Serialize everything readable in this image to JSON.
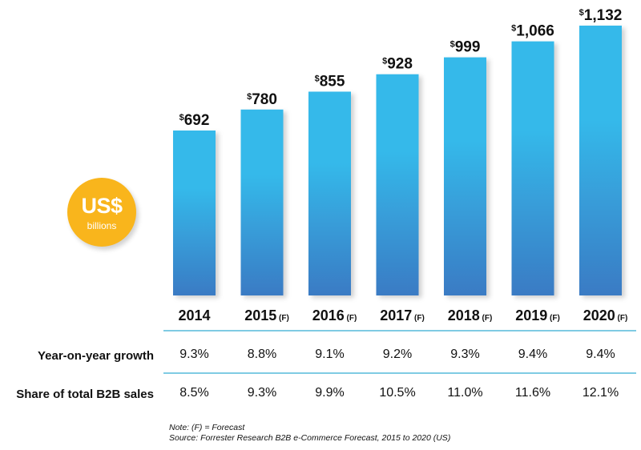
{
  "chart_data": {
    "type": "bar",
    "title": "",
    "xlabel": "",
    "ylabel": "US$ billions",
    "unit_badge": {
      "currency": "US$",
      "unit": "billions"
    },
    "currency_prefix": "$",
    "categories": [
      {
        "year": "2014",
        "suffix": ""
      },
      {
        "year": "2015",
        "suffix": "(F)"
      },
      {
        "year": "2016",
        "suffix": "(F)"
      },
      {
        "year": "2017",
        "suffix": "(F)"
      },
      {
        "year": "2018",
        "suffix": "(F)"
      },
      {
        "year": "2019",
        "suffix": "(F)"
      },
      {
        "year": "2020",
        "suffix": "(F)"
      }
    ],
    "values": [
      692,
      780,
      855,
      928,
      999,
      1066,
      1132
    ],
    "value_labels": [
      "692",
      "780",
      "855",
      "928",
      "999",
      "1,066",
      "1,132"
    ],
    "ylim": [
      0,
      1132
    ],
    "grid": false,
    "bar_color_top": "#35b9ea",
    "bar_color_bottom": "#3a7bc4"
  },
  "table": {
    "rows": [
      {
        "label": "Year-on-year growth",
        "values": [
          "9.3%",
          "8.8%",
          "9.1%",
          "9.2%",
          "9.3%",
          "9.4%",
          "9.4%"
        ]
      },
      {
        "label": "Share of total B2B sales",
        "values": [
          "8.5%",
          "9.3%",
          "9.9%",
          "10.5%",
          "11.0%",
          "11.6%",
          "12.1%"
        ]
      }
    ]
  },
  "notes": {
    "note": "Note: (F) = Forecast",
    "source": "Source: Forrester Research B2B e-Commerce Forecast, 2015 to 2020 (US)"
  },
  "colors": {
    "badge": "#f9b51c",
    "rule": "#7fcbe3"
  }
}
